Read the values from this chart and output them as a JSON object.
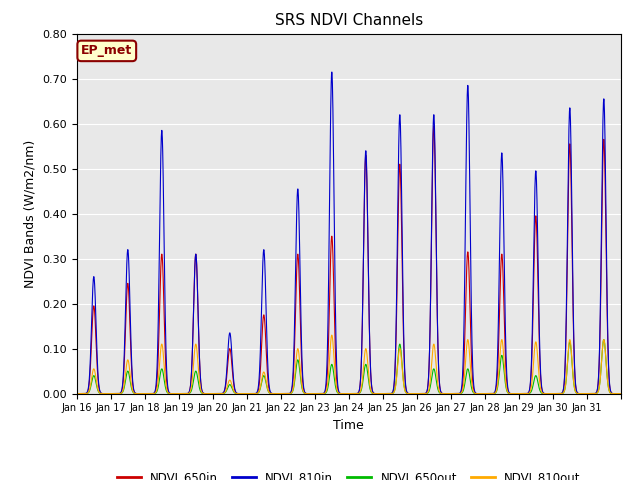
{
  "title": "SRS NDVI Channels",
  "xlabel": "Time",
  "ylabel": "NDVI Bands (W/m2/nm)",
  "ylim": [
    0.0,
    0.8
  ],
  "annotation_text": "EP_met",
  "legend_labels": [
    "NDVI_650in",
    "NDVI_810in",
    "NDVI_650out",
    "NDVI_810out"
  ],
  "colors": {
    "NDVI_650in": "#cc0000",
    "NDVI_810in": "#0000cc",
    "NDVI_650out": "#00bb00",
    "NDVI_810out": "#ffaa00"
  },
  "background_color": "#e8e8e8",
  "fig_background": "#ffffff",
  "day_peaks_810in": [
    0.26,
    0.32,
    0.585,
    0.31,
    0.135,
    0.32,
    0.455,
    0.715,
    0.54,
    0.62,
    0.62,
    0.685,
    0.535,
    0.495,
    0.635,
    0.655
  ],
  "day_peaks_650in": [
    0.195,
    0.245,
    0.31,
    0.31,
    0.1,
    0.175,
    0.31,
    0.35,
    0.53,
    0.51,
    0.595,
    0.315,
    0.31,
    0.395,
    0.555,
    0.565
  ],
  "day_peaks_650out": [
    0.04,
    0.05,
    0.055,
    0.05,
    0.02,
    0.04,
    0.075,
    0.065,
    0.065,
    0.11,
    0.055,
    0.055,
    0.085,
    0.04,
    0.115,
    0.12
  ],
  "day_peaks_810out": [
    0.055,
    0.075,
    0.11,
    0.11,
    0.03,
    0.048,
    0.1,
    0.13,
    0.1,
    0.1,
    0.11,
    0.12,
    0.12,
    0.115,
    0.12,
    0.12
  ],
  "n_days": 16,
  "n_points_per_day": 200,
  "sigma": 0.065,
  "tick_labels": [
    "Jan 16",
    "Jan 17",
    "Jan 18",
    "Jan 19",
    "Jan 20",
    "Jan 21",
    "Jan 22",
    "Jan 23",
    "Jan 24",
    "Jan 25",
    "Jan 26",
    "Jan 27",
    "Jan 28",
    "Jan 29",
    "Jan 30",
    "Jan 31"
  ],
  "yticks": [
    0.0,
    0.1,
    0.2,
    0.3,
    0.4,
    0.5,
    0.6,
    0.7,
    0.8
  ]
}
